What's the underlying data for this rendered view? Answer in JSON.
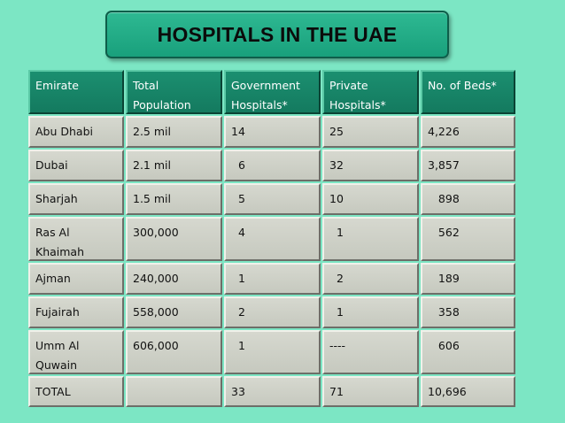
{
  "slide": {
    "title": "HOSPITALS IN THE UAE"
  },
  "table": {
    "headers": [
      "Emirate",
      "Total\nPopulation",
      "Government\nHospitals*",
      "Private\nHospitals*",
      "No. of Beds*"
    ],
    "rows": [
      [
        "Abu Dhabi",
        "2.5 mil",
        "14",
        "25",
        "4,226"
      ],
      [
        "Dubai",
        "2.1 mil",
        "  6",
        "32",
        "3,857"
      ],
      [
        "Sharjah",
        "1.5 mil",
        "  5",
        "10",
        "   898"
      ],
      [
        "Ras Al\nKhaimah",
        "300,000",
        "  4",
        "  1",
        "   562"
      ],
      [
        "Ajman",
        "240,000",
        "  1",
        "  2",
        "   189"
      ],
      [
        "Fujairah",
        "558,000",
        "  2",
        "  1",
        "   358"
      ],
      [
        "Umm Al\nQuwain",
        "606,000",
        "  1",
        "----",
        "   606"
      ],
      [
        "TOTAL",
        "",
        "33",
        "71",
        "10,696"
      ]
    ]
  },
  "colors": {
    "background": "#7ce6c4",
    "header_fill": "#178566",
    "cell_fill": "#cdd0c6",
    "title_fill": "#22ad86"
  }
}
